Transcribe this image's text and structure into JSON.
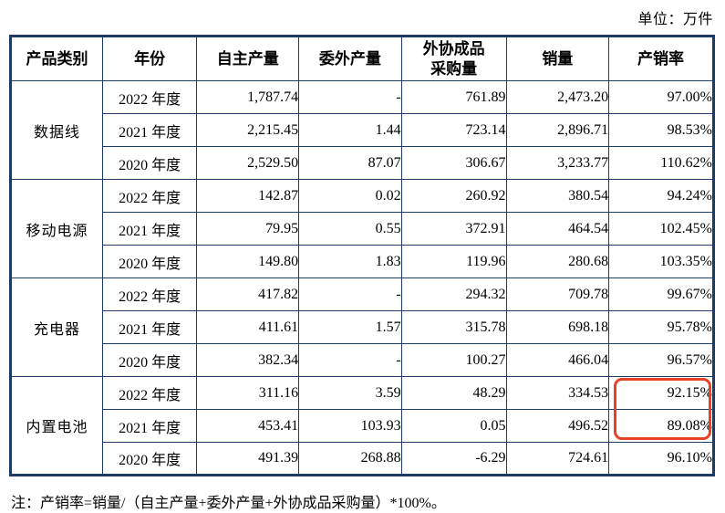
{
  "unit_label": "单位：万件",
  "note": "注：产销率=销量/（自主产量+委外产量+外协成品采购量）*100%。",
  "colors": {
    "table_border": "#1E3A66",
    "highlight_box": "#EB4027",
    "text": "#000000"
  },
  "table": {
    "headers": [
      "产品类别",
      "年份",
      "自主产量",
      "委外产量",
      "外协成品\n采购量",
      "销量",
      "产销率"
    ],
    "groups": [
      {
        "category": "数据线",
        "rows": [
          {
            "year": "2022 年度",
            "values": [
              "1,787.74",
              "-",
              "761.89",
              "2,473.20",
              "97.00%"
            ]
          },
          {
            "year": "2021 年度",
            "values": [
              "2,215.45",
              "1.44",
              "723.14",
              "2,896.71",
              "98.53%"
            ]
          },
          {
            "year": "2020 年度",
            "values": [
              "2,529.50",
              "87.07",
              "306.67",
              "3,233.77",
              "110.62%"
            ]
          }
        ]
      },
      {
        "category": "移动电源",
        "rows": [
          {
            "year": "2022 年度",
            "values": [
              "142.87",
              "0.02",
              "260.92",
              "380.54",
              "94.24%"
            ]
          },
          {
            "year": "2021 年度",
            "values": [
              "79.95",
              "0.55",
              "372.91",
              "464.54",
              "102.45%"
            ]
          },
          {
            "year": "2020 年度",
            "values": [
              "149.80",
              "1.83",
              "119.96",
              "280.68",
              "103.35%"
            ]
          }
        ]
      },
      {
        "category": "充电器",
        "rows": [
          {
            "year": "2022 年度",
            "values": [
              "417.82",
              "-",
              "294.32",
              "709.78",
              "99.67%"
            ]
          },
          {
            "year": "2021 年度",
            "values": [
              "411.61",
              "1.57",
              "315.78",
              "698.18",
              "95.78%"
            ]
          },
          {
            "year": "2020 年度",
            "values": [
              "382.34",
              "-",
              "100.27",
              "466.04",
              "96.57%"
            ]
          }
        ]
      },
      {
        "category": "内置电池",
        "rows": [
          {
            "year": "2022 年度",
            "values": [
              "311.16",
              "3.59",
              "48.29",
              "334.53",
              "92.15%"
            ],
            "highlight_last": true
          },
          {
            "year": "2021 年度",
            "values": [
              "453.41",
              "103.93",
              "0.05",
              "496.52",
              "89.08%"
            ],
            "highlight_last": true
          },
          {
            "year": "2020 年度",
            "values": [
              "491.39",
              "268.88",
              "-6.29",
              "724.61",
              "96.10%"
            ]
          }
        ]
      }
    ]
  }
}
